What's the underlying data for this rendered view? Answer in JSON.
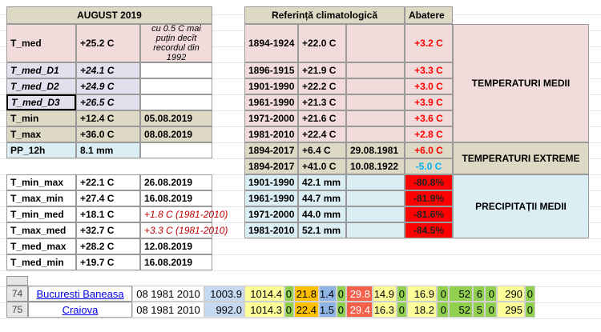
{
  "left_table": {
    "header": "AUGUST 2019",
    "rows": [
      {
        "label": "T_med",
        "value": "+25.2 C",
        "note": "cu  0.5 C mai puțin decît recordul din 1992"
      },
      {
        "label": "T_med_D1",
        "value": "+24.1 C"
      },
      {
        "label": "T_med_D2",
        "value": "+24.9 C"
      },
      {
        "label": "T_med_D3",
        "value": "+26.5 C"
      },
      {
        "label": "T_min",
        "value": "+12.4 C",
        "note": "05.08.2019"
      },
      {
        "label": "T_max",
        "value": "+36.0 C",
        "note": "08.08.2019"
      },
      {
        "label": "PP_12h",
        "value": "8.1 mm"
      },
      {
        "label": "T_min_max",
        "value": "+22.1 C",
        "note": "26.08.2019"
      },
      {
        "label": "T_max_min",
        "value": "+27.4 C",
        "note": "16.08.2019"
      },
      {
        "label": "T_min_med",
        "value": "+18.1 C",
        "note": "+1.8 C (1981-2010)"
      },
      {
        "label": "T_max_med",
        "value": "+32.7 C",
        "note": "+3.3 C (1981-2010)"
      },
      {
        "label": "T_med_max",
        "value": "+28.2 C",
        "note": "12.08.2019"
      },
      {
        "label": "T_med_min",
        "value": "+19.7 C",
        "note": "16.08.2019"
      }
    ]
  },
  "right_table": {
    "header": "Referință climatologică",
    "deviation_header": "Abatere",
    "rows": [
      {
        "period": "1894-1924",
        "value": "+22.0 C",
        "deviation": "+3.2 C"
      },
      {
        "period": "1896-1915",
        "value": "+21.9 C",
        "deviation": "+3.3 C"
      },
      {
        "period": "1901-1990",
        "value": "+22.2 C",
        "deviation": "+3.0 C"
      },
      {
        "period": "1961-1990",
        "value": "+21.3 C",
        "deviation": "+3.9 C"
      },
      {
        "period": "1971-2000",
        "value": "+21.6 C",
        "deviation": "+3.6 C"
      },
      {
        "period": "1981-2010",
        "value": "+22.4 C",
        "deviation": "+2.8 C"
      },
      {
        "period": "1894-2017",
        "value": "+6.4 C",
        "date": "29.08.1981",
        "deviation": "+6.0 C"
      },
      {
        "period": "1894-2017",
        "value": "+41.0 C",
        "date": "10.08.1922",
        "deviation": "-5.0 C"
      },
      {
        "period": "1901-1990",
        "value": "42.1 mm",
        "deviation": "-80.8%"
      },
      {
        "period": "1961-1990",
        "value": "44.7 mm",
        "deviation": "-81.9%"
      },
      {
        "period": "1971-2000",
        "value": "44.0 mm",
        "deviation": "-81.6%"
      },
      {
        "period": "1981-2010",
        "value": "52.1 mm",
        "deviation": "-84.5%"
      }
    ],
    "groups": [
      "TEMPERATURI MEDII",
      "TEMPERATURI EXTREME",
      "PRECIPITAȚII MEDII"
    ]
  },
  "sheet_rows": [
    {
      "row": "74",
      "station": "Bucuresti Baneasa",
      "cells": [
        "08 1981 2010",
        "1003.9",
        "1014.4",
        "0",
        "21.8",
        "1.4",
        "0",
        "29.8",
        "14.9",
        "0",
        "16.9",
        "0",
        "52",
        "6",
        "0",
        "290",
        "0"
      ]
    },
    {
      "row": "75",
      "station": "Craiova",
      "cells": [
        "08 1981 2010",
        "992.0",
        "1014.3",
        "0",
        "22.4",
        "1.5",
        "0",
        "29.4",
        "16.3",
        "0",
        "18.2",
        "0",
        "52",
        "5",
        "0",
        "295",
        "0"
      ]
    }
  ]
}
